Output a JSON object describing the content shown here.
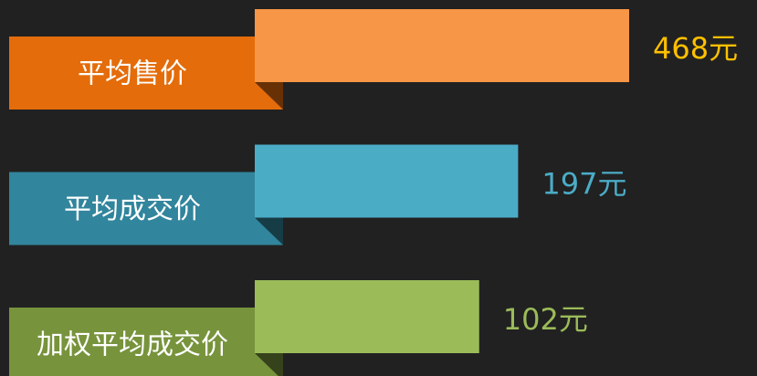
{
  "chart_data": {
    "type": "ribbon-bar",
    "categories": [
      "平均售价",
      "平均成交价",
      "加权平均成交价"
    ],
    "values": [
      468,
      197,
      102
    ],
    "value_labels": [
      "468元",
      "197元",
      "102元"
    ],
    "colors": [
      "#f79646",
      "#4bacc6",
      "#9bbb59"
    ],
    "ribbon_colors": [
      "#e46c0a",
      "#31859c",
      "#77933c"
    ],
    "label_colors": [
      "#ffc000",
      "#4bacc6",
      "#9bbb59"
    ]
  }
}
